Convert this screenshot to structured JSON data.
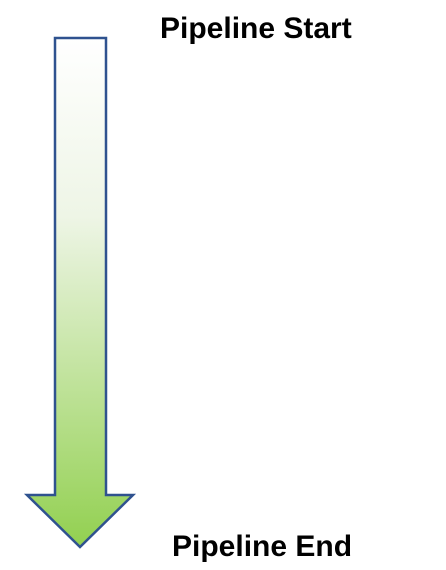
{
  "diagram": {
    "start_label": "Pipeline Start",
    "end_label": "Pipeline End",
    "arrow": {
      "direction": "down",
      "gradient_top_color": "#ffffff",
      "gradient_bottom_color": "#92d050",
      "outline_color": "#2f528f"
    }
  }
}
